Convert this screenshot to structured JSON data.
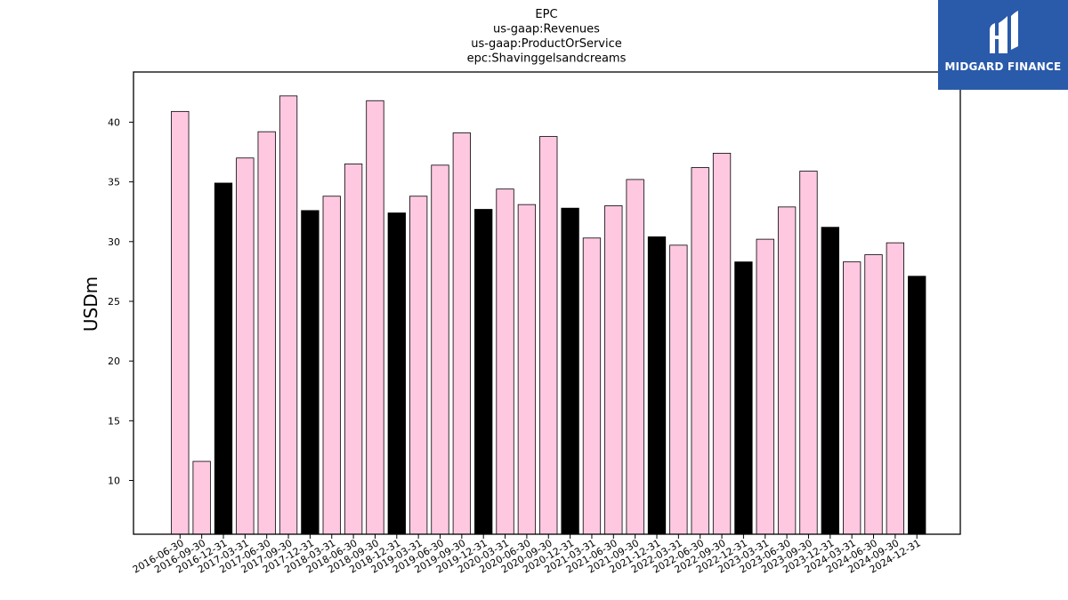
{
  "chart_data": {
    "type": "bar",
    "title_lines": [
      "EPC",
      "us-gaap:Revenues",
      "us-gaap:ProductOrService",
      "epc:Shavinggelsandcreams"
    ],
    "xlabel": "",
    "ylabel": "USDm",
    "ylim": [
      5.5,
      44.2
    ],
    "yticks": [
      10,
      15,
      20,
      25,
      30,
      35,
      40
    ],
    "categories": [
      "2016-06-30",
      "2016-09-30",
      "2016-12-31",
      "2017-03-31",
      "2017-06-30",
      "2017-09-30",
      "2017-12-31",
      "2018-03-31",
      "2018-06-30",
      "2018-09-30",
      "2018-12-31",
      "2019-03-31",
      "2019-06-30",
      "2019-09-30",
      "2019-12-31",
      "2020-03-31",
      "2020-06-30",
      "2020-09-30",
      "2020-12-31",
      "2021-03-31",
      "2021-06-30",
      "2021-09-30",
      "2021-12-31",
      "2022-03-31",
      "2022-06-30",
      "2022-09-30",
      "2022-12-31",
      "2023-03-31",
      "2023-06-30",
      "2023-09-30",
      "2023-12-31",
      "2024-03-31",
      "2024-06-30",
      "2024-09-30",
      "2024-12-31"
    ],
    "values": [
      40.9,
      11.6,
      34.9,
      37.0,
      39.2,
      42.2,
      32.6,
      33.8,
      36.5,
      41.8,
      32.4,
      33.8,
      36.4,
      39.1,
      32.7,
      34.4,
      33.1,
      38.8,
      32.8,
      30.3,
      33.0,
      35.2,
      30.4,
      29.7,
      36.2,
      37.4,
      28.3,
      30.2,
      32.9,
      35.9,
      31.2,
      28.3,
      28.9,
      29.9,
      27.1
    ],
    "highlight_quarter": "12-31",
    "colors": {
      "bar": "#ffc8e1",
      "highlight": "#000000",
      "edge": "#000000"
    },
    "grid": false,
    "legend": "none"
  },
  "logo": {
    "text": "MIDGARD FINANCE",
    "icon": "midgard-logo-icon"
  }
}
